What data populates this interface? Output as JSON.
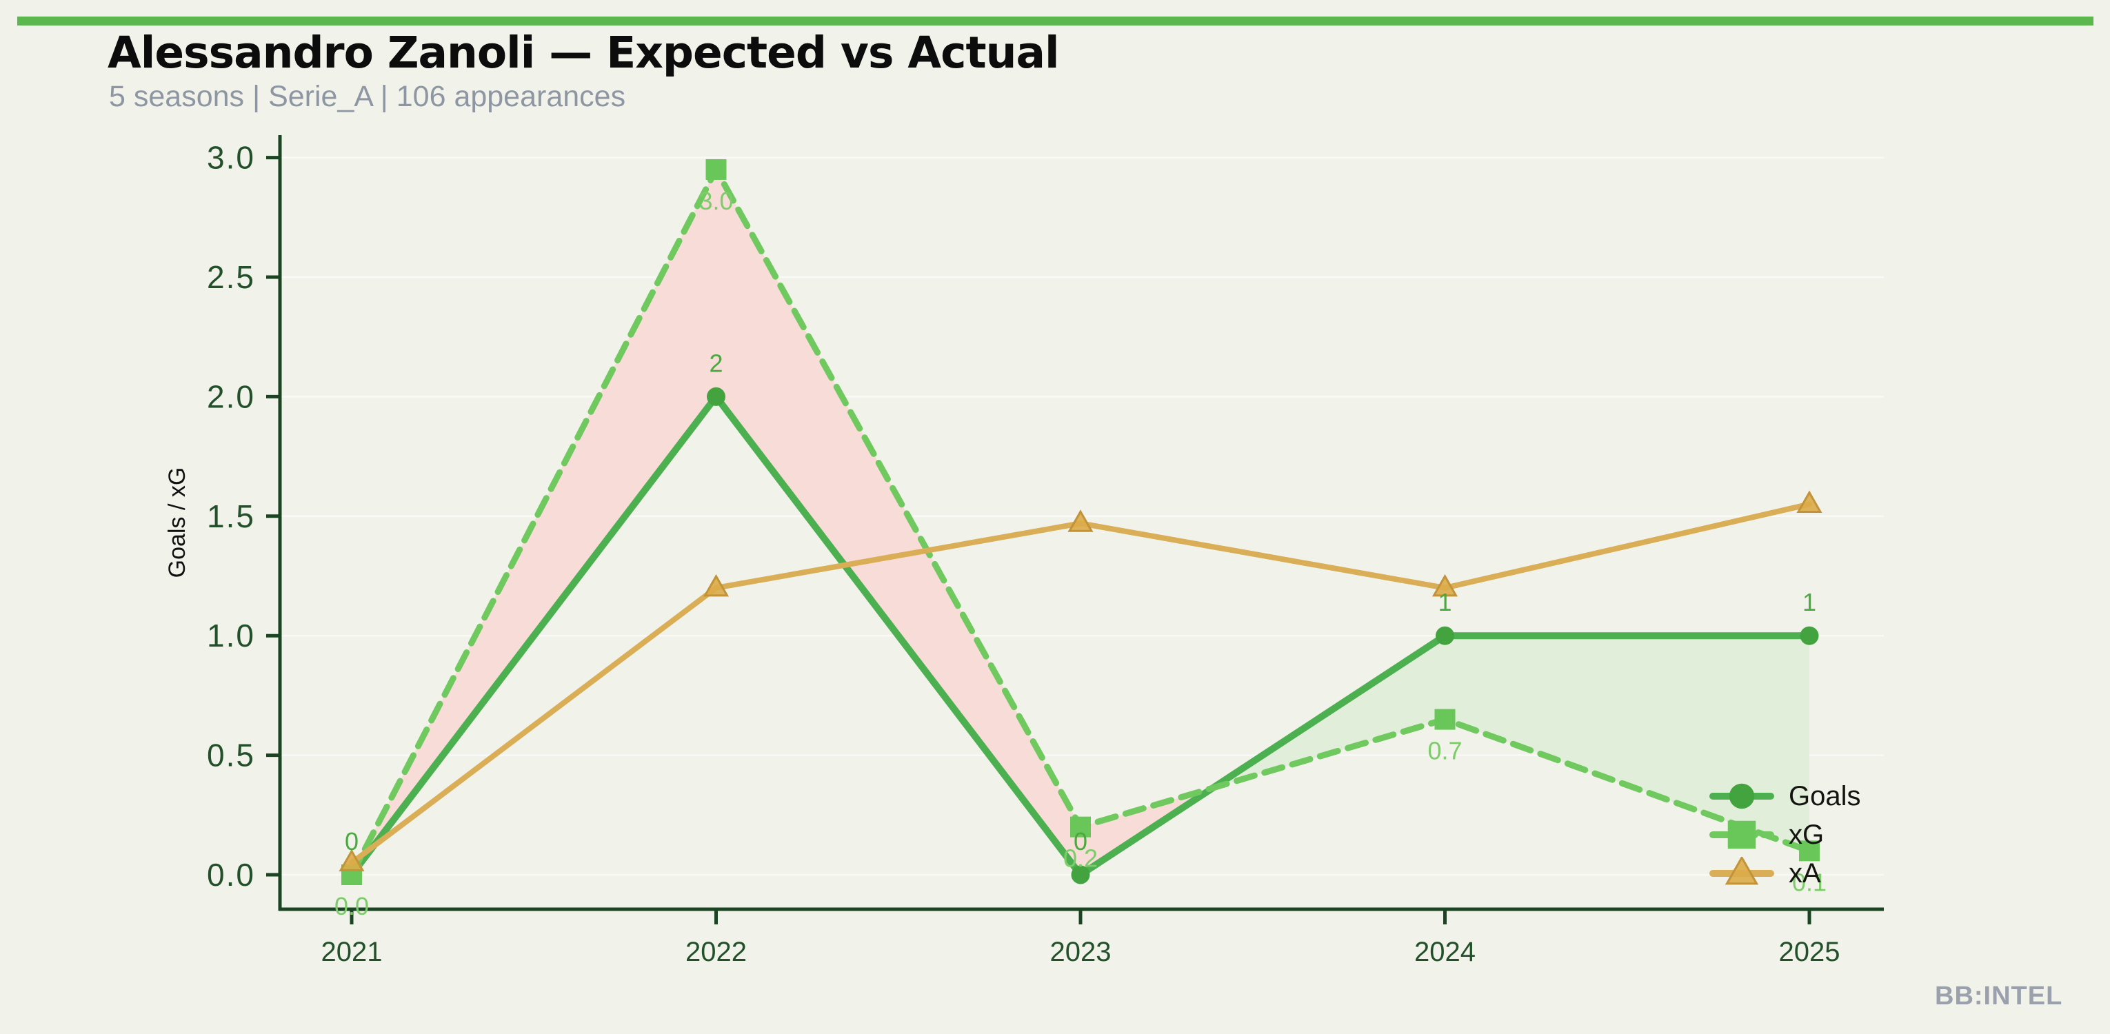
{
  "page": {
    "background_color": "#f1f3ea",
    "accent_bar_color": "#5cb84e",
    "watermark": "BB:INTEL"
  },
  "header": {
    "title": "Alessandro Zanoli — Expected vs Actual",
    "subtitle": "5 seasons | Serie_A | 106 appearances"
  },
  "chart_data": {
    "type": "line",
    "title": "Alessandro Zanoli — Expected vs Actual",
    "subtitle": "5 seasons | Serie_A | 106 appearances",
    "xlabel": "",
    "ylabel": "Goals / xG",
    "categories": [
      "2021",
      "2022",
      "2023",
      "2024",
      "2025"
    ],
    "y_ticks": [
      "0.0",
      "0.5",
      "1.0",
      "1.5",
      "2.0",
      "2.5",
      "3.0"
    ],
    "ylim": [
      0,
      3.05
    ],
    "grid": "horizontal-faint",
    "legend_position": "lower right",
    "axis_color": "#1b4423",
    "tick_label_color": "#23502a",
    "series": [
      {
        "name": "Goals",
        "values": [
          0,
          2,
          0,
          1,
          1
        ],
        "labels": [
          "0",
          "2",
          "0",
          "1",
          "1"
        ],
        "label_side": "above",
        "label_color": "#4aa93f",
        "color": "#4caf50",
        "marker": "circle",
        "marker_color": "#42a33f",
        "line_style": "solid",
        "line_width": 10
      },
      {
        "name": "xG",
        "values": [
          0.0,
          2.95,
          0.2,
          0.65,
          0.1
        ],
        "labels": [
          "0.0",
          "3.0",
          "0.2",
          "0.7",
          "0.1"
        ],
        "label_side": "below",
        "label_color": "#7dcc6a",
        "color": "#6fc95f",
        "marker": "square",
        "marker_color": "#68c758",
        "line_style": "dashed",
        "line_width": 9
      },
      {
        "name": "xA",
        "values": [
          0.05,
          1.2,
          1.47,
          1.2,
          1.55
        ],
        "labels": [],
        "label_side": "above",
        "label_color": "#d9ae56",
        "color": "#d9ae56",
        "marker": "triangle",
        "marker_color": "#dcab49",
        "marker_edge_color": "#c29338",
        "line_style": "solid",
        "line_width": 8
      }
    ],
    "fill_between": {
      "between": [
        "xG",
        "Goals"
      ],
      "above_color": "#f8dcd7",
      "below_color": "#e1efda",
      "note": "pink where xG exceeds Goals, light green where Goals exceed xG"
    }
  }
}
